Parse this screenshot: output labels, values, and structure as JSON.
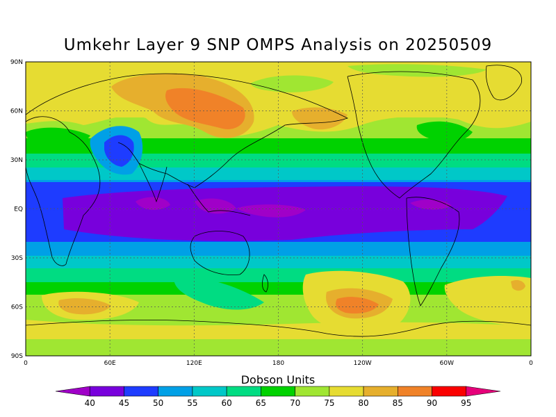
{
  "title": "Umkehr Layer 9 SNP OMPS Analysis on 20250509",
  "colorbar": {
    "title": "Dobson Units",
    "levels": [
      "40",
      "45",
      "50",
      "55",
      "60",
      "65",
      "70",
      "75",
      "80",
      "85",
      "90",
      "95"
    ],
    "colors": [
      "#a000c8",
      "#7800dc",
      "#1e3cff",
      "#00a0e6",
      "#00c8c8",
      "#00dc82",
      "#00d200",
      "#a0e632",
      "#e6dc32",
      "#e6af2d",
      "#f08228",
      "#fa0000",
      "#e6007a"
    ]
  },
  "axes": {
    "lat_labels": [
      "90N",
      "60N",
      "30N",
      "EQ",
      "30S",
      "60S",
      "90S"
    ],
    "lon_labels": [
      "0",
      "60E",
      "120E",
      "180",
      "120W",
      "60W",
      "0"
    ]
  },
  "chart_data": {
    "type": "heatmap",
    "title": "Umkehr Layer 9 SNP OMPS Analysis on 20250509",
    "units": "Dobson Units",
    "lat_range": [
      -90,
      90
    ],
    "lon_range": [
      0,
      360
    ],
    "grid": true,
    "band_profile": [
      {
        "lat": 90,
        "value": 77
      },
      {
        "lat": 75,
        "value": 78
      },
      {
        "lat": 60,
        "value": 76
      },
      {
        "lat": 45,
        "value": 70
      },
      {
        "lat": 35,
        "value": 65
      },
      {
        "lat": 25,
        "value": 57
      },
      {
        "lat": 15,
        "value": 48
      },
      {
        "lat": 5,
        "value": 43
      },
      {
        "lat": 0,
        "value": 42
      },
      {
        "lat": -5,
        "value": 43
      },
      {
        "lat": -15,
        "value": 47
      },
      {
        "lat": -25,
        "value": 55
      },
      {
        "lat": -35,
        "value": 62
      },
      {
        "lat": -45,
        "value": 68
      },
      {
        "lat": -55,
        "value": 74
      },
      {
        "lat": -65,
        "value": 78
      },
      {
        "lat": -75,
        "value": 76
      },
      {
        "lat": -90,
        "value": 74
      }
    ],
    "features": [
      {
        "lon": 120,
        "lat": 60,
        "value": 87
      },
      {
        "lon": 160,
        "lat": 55,
        "value": 85
      },
      {
        "lon": 215,
        "lat": -58,
        "value": 85
      },
      {
        "lon": 50,
        "lat": -60,
        "value": 80
      },
      {
        "lon": 70,
        "lat": 35,
        "value": 57
      },
      {
        "lon": 60,
        "lat": 0,
        "value": 40
      },
      {
        "lon": 140,
        "lat": 0,
        "value": 40
      },
      {
        "lon": 300,
        "lat": 3,
        "value": 40
      }
    ]
  }
}
